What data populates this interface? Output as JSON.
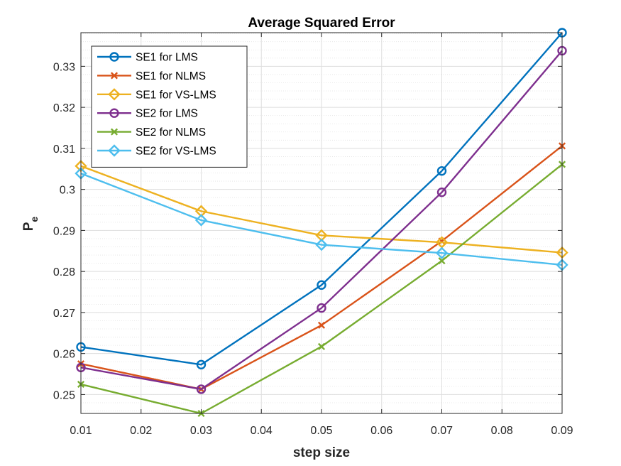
{
  "chart_data": {
    "type": "line",
    "title": "Average Squared Error",
    "xlabel": "step size",
    "ylabel_main": "P",
    "ylabel_sub": "e",
    "xlim": [
      0.01,
      0.09
    ],
    "ylim": [
      0.2454,
      0.3382
    ],
    "xticks": [
      0.01,
      0.02,
      0.03,
      0.04,
      0.05,
      0.06,
      0.07,
      0.08,
      0.09
    ],
    "xtick_labels": [
      "0.01",
      "0.02",
      "0.03",
      "0.04",
      "0.05",
      "0.06",
      "0.07",
      "0.08",
      "0.09"
    ],
    "yticks": [
      0.25,
      0.26,
      0.27,
      0.28,
      0.29,
      0.3,
      0.31,
      0.32,
      0.33
    ],
    "ytick_labels": [
      "0.25",
      "0.26",
      "0.27",
      "0.28",
      "0.29",
      "0.3",
      "0.31",
      "0.32",
      "0.33"
    ],
    "yminor_step": 0.002,
    "grid": true,
    "legend_position": "top-left",
    "x": [
      0.01,
      0.03,
      0.05,
      0.07,
      0.09
    ],
    "series": [
      {
        "name": "SE1 for LMS",
        "color": "#0072BD",
        "marker": "circle",
        "values": [
          0.2616,
          0.2573,
          0.2767,
          0.3045,
          0.3382
        ]
      },
      {
        "name": "SE1 for NLMS",
        "color": "#D95319",
        "marker": "x",
        "values": [
          0.2575,
          0.2513,
          0.2669,
          0.2874,
          0.3106
        ]
      },
      {
        "name": "SE1 for VS-LMS",
        "color": "#EDB120",
        "marker": "diamond",
        "values": [
          0.3057,
          0.2947,
          0.2888,
          0.2871,
          0.2846
        ]
      },
      {
        "name": "SE2 for LMS",
        "color": "#7E2F8E",
        "marker": "circle",
        "values": [
          0.2566,
          0.2513,
          0.2711,
          0.2993,
          0.3338
        ]
      },
      {
        "name": "SE2 for NLMS",
        "color": "#77AC30",
        "marker": "x",
        "values": [
          0.2525,
          0.2454,
          0.2617,
          0.2826,
          0.3061
        ]
      },
      {
        "name": "SE2 for VS-LMS",
        "color": "#4DBEEE",
        "marker": "diamond",
        "values": [
          0.3039,
          0.2925,
          0.2865,
          0.2845,
          0.2816
        ]
      }
    ]
  }
}
